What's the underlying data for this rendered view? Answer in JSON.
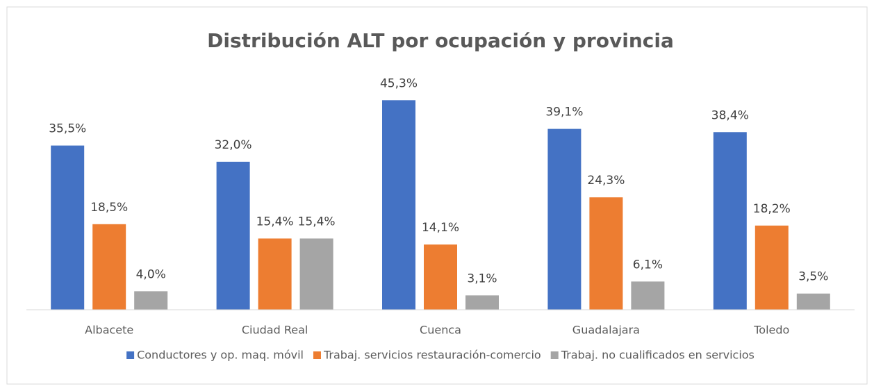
{
  "chart_data": {
    "type": "bar",
    "title": "Distribución ALT por ocupación y provincia",
    "categories": [
      "Albacete",
      "Ciudad Real",
      "Cuenca",
      "Guadalajara",
      "Toledo"
    ],
    "series": [
      {
        "name": "Conductores y op. maq. móvil",
        "color": "#4472c4",
        "values": [
          35.5,
          32.0,
          45.3,
          39.1,
          38.4
        ],
        "value_labels": [
          "35,5%",
          "32,0%",
          "45,3%",
          "39,1%",
          "38,4%"
        ]
      },
      {
        "name": "Trabaj. servicios restauración-comercio",
        "color": "#ed7d31",
        "values": [
          18.5,
          15.4,
          14.1,
          24.3,
          18.2
        ],
        "value_labels": [
          "18,5%",
          "15,4%",
          "14,1%",
          "24,3%",
          "18,2%"
        ]
      },
      {
        "name": "Trabaj. no cualificados en servicios",
        "color": "#a5a5a5",
        "values": [
          4.0,
          15.4,
          3.1,
          6.1,
          3.5
        ],
        "value_labels": [
          "4,0%",
          "15,4%",
          "3,1%",
          "6,1%",
          "3,5%"
        ]
      }
    ],
    "ylim": [
      0,
      50
    ]
  }
}
